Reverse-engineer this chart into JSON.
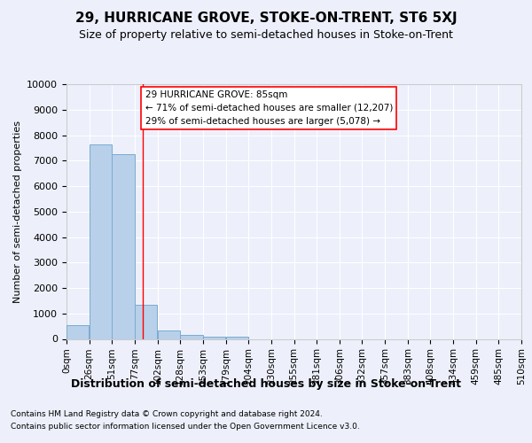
{
  "title": "29, HURRICANE GROVE, STOKE-ON-TRENT, ST6 5XJ",
  "subtitle": "Size of property relative to semi-detached houses in Stoke-on-Trent",
  "xlabel": "Distribution of semi-detached houses by size in Stoke-on-Trent",
  "ylabel": "Number of semi-detached properties",
  "footnote1": "Contains HM Land Registry data © Crown copyright and database right 2024.",
  "footnote2": "Contains public sector information licensed under the Open Government Licence v3.0.",
  "bar_labels": [
    "0sqm",
    "26sqm",
    "51sqm",
    "77sqm",
    "102sqm",
    "128sqm",
    "153sqm",
    "179sqm",
    "204sqm",
    "230sqm",
    "255sqm",
    "281sqm",
    "306sqm",
    "332sqm",
    "357sqm",
    "383sqm",
    "408sqm",
    "434sqm",
    "459sqm",
    "485sqm",
    "510sqm"
  ],
  "bar_values": [
    530,
    7650,
    7250,
    1350,
    330,
    160,
    100,
    75,
    0,
    0,
    0,
    0,
    0,
    0,
    0,
    0,
    0,
    0,
    0,
    0
  ],
  "bar_color": "#b8d0ea",
  "bar_edgecolor": "#7aabcf",
  "annotation_title": "29 HURRICANE GROVE: 85sqm",
  "annotation_line1": "← 71% of semi-detached houses are smaller (12,207)",
  "annotation_line2": "29% of semi-detached houses are larger (5,078) →",
  "red_line_x": 85,
  "ylim": [
    0,
    10000
  ],
  "yticks": [
    0,
    1000,
    2000,
    3000,
    4000,
    5000,
    6000,
    7000,
    8000,
    9000,
    10000
  ],
  "background_color": "#edf0fb",
  "grid_color": "#ffffff",
  "bin_width": 25.5
}
